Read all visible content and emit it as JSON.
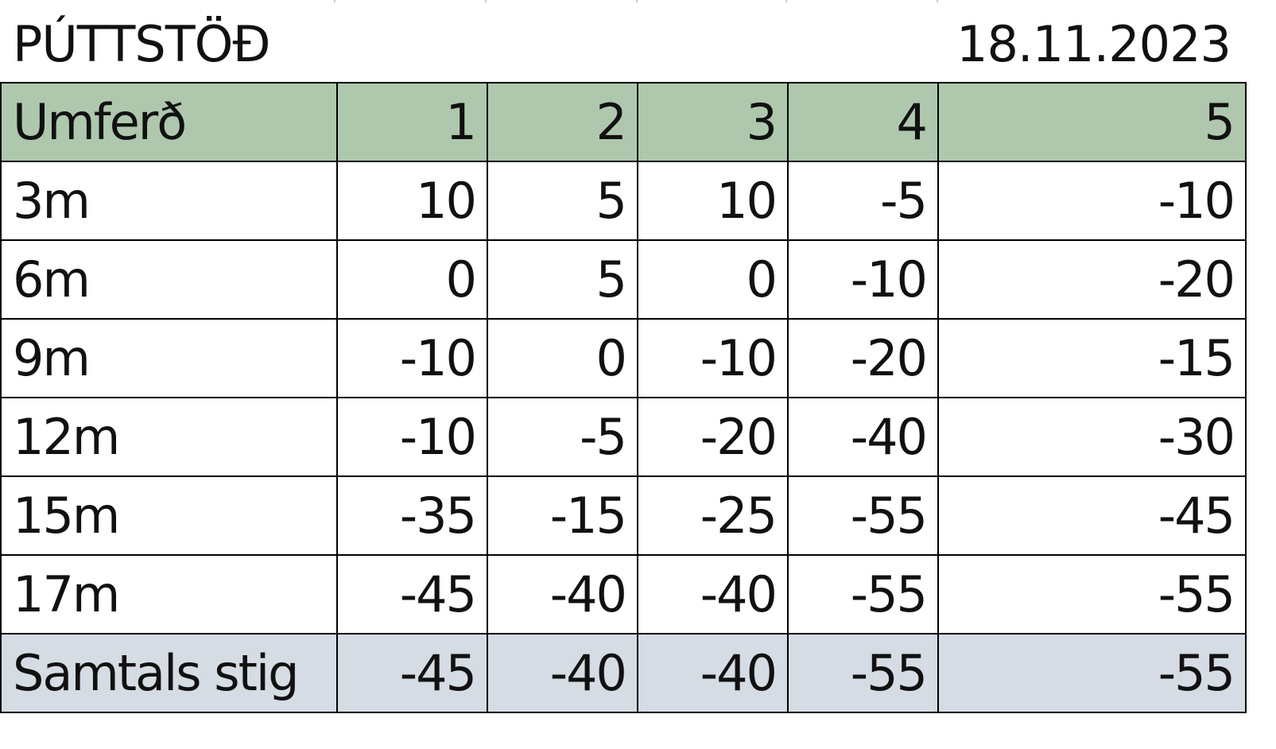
{
  "sheet": {
    "title": "PÚTTSTÖÐ",
    "date": "18.11.2023"
  },
  "colors": {
    "header_fill": "#afc8ad",
    "total_fill": "#d6dce4",
    "grid_line": "#000000"
  },
  "table": {
    "header": {
      "label": "Umferð",
      "rounds": [
        "1",
        "2",
        "3",
        "4",
        "5"
      ]
    },
    "rows": [
      {
        "distance": "3m",
        "values": [
          "10",
          "5",
          "10",
          "-5",
          "-10"
        ]
      },
      {
        "distance": "6m",
        "values": [
          "0",
          "5",
          "0",
          "-10",
          "-20"
        ]
      },
      {
        "distance": "9m",
        "values": [
          "-10",
          "0",
          "-10",
          "-20",
          "-15"
        ]
      },
      {
        "distance": "12m",
        "values": [
          "-10",
          "-5",
          "-20",
          "-40",
          "-30"
        ]
      },
      {
        "distance": "15m",
        "values": [
          "-35",
          "-15",
          "-25",
          "-55",
          "-45"
        ]
      },
      {
        "distance": "17m",
        "values": [
          "-45",
          "-40",
          "-40",
          "-55",
          "-55"
        ]
      }
    ],
    "total": {
      "label": "Samtals stig",
      "values": [
        "-45",
        "-40",
        "-40",
        "-55",
        "-55"
      ]
    }
  }
}
